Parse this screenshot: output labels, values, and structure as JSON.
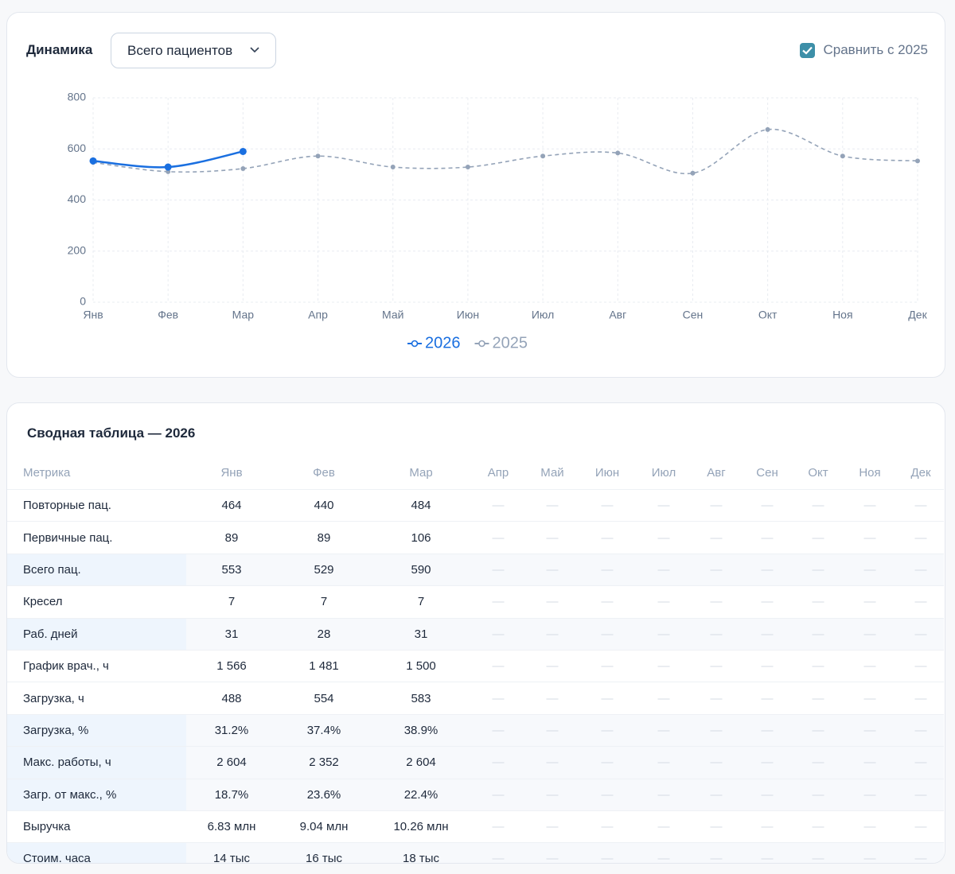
{
  "header": {
    "title": "Динамика",
    "dropdown": "Всего пациентов",
    "compare": "Сравнить с 2025"
  },
  "chart_data": {
    "type": "line",
    "categories": [
      "Янв",
      "Фев",
      "Мар",
      "Апр",
      "Май",
      "Июн",
      "Июл",
      "Авг",
      "Сен",
      "Окт",
      "Ноя",
      "Дек"
    ],
    "series": [
      {
        "name": "2026",
        "color": "#1a6fe0",
        "dashed": false,
        "values": [
          553,
          529,
          590,
          null,
          null,
          null,
          null,
          null,
          null,
          null,
          null,
          null
        ]
      },
      {
        "name": "2025",
        "color": "#94a3b8",
        "dashed": true,
        "values": [
          547,
          511,
          523,
          572,
          529,
          529,
          572,
          584,
          505,
          676,
          572,
          553
        ]
      }
    ],
    "ylim": [
      0,
      800
    ],
    "yticks": [
      0,
      200,
      400,
      600,
      800
    ],
    "grid": true
  },
  "table": {
    "title": "Сводная таблица — 2026",
    "columns": [
      "Метрика",
      "Янв",
      "Фев",
      "Мар",
      "Апр",
      "Май",
      "Июн",
      "Июл",
      "Авг",
      "Сен",
      "Окт",
      "Ноя",
      "Дек"
    ],
    "rows": [
      [
        "Повторные пац.",
        "464",
        "440",
        "484",
        "—",
        "—",
        "—",
        "—",
        "—",
        "—",
        "—",
        "—",
        "—"
      ],
      [
        "Первичные пац.",
        "89",
        "89",
        "106",
        "—",
        "—",
        "—",
        "—",
        "—",
        "—",
        "—",
        "—",
        "—"
      ],
      [
        "Всего пац.",
        "553",
        "529",
        "590",
        "—",
        "—",
        "—",
        "—",
        "—",
        "—",
        "—",
        "—",
        "—"
      ],
      [
        "Кресел",
        "7",
        "7",
        "7",
        "—",
        "—",
        "—",
        "—",
        "—",
        "—",
        "—",
        "—",
        "—"
      ],
      [
        "Раб. дней",
        "31",
        "28",
        "31",
        "—",
        "—",
        "—",
        "—",
        "—",
        "—",
        "—",
        "—",
        "—"
      ],
      [
        "График врач., ч",
        "1 566",
        "1 481",
        "1 500",
        "—",
        "—",
        "—",
        "—",
        "—",
        "—",
        "—",
        "—",
        "—"
      ],
      [
        "Загрузка, ч",
        "488",
        "554",
        "583",
        "—",
        "—",
        "—",
        "—",
        "—",
        "—",
        "—",
        "—",
        "—"
      ],
      [
        "Загрузка, %",
        "31.2%",
        "37.4%",
        "38.9%",
        "—",
        "—",
        "—",
        "—",
        "—",
        "—",
        "—",
        "—",
        "—"
      ],
      [
        "Макс. работы, ч",
        "2 604",
        "2 352",
        "2 604",
        "—",
        "—",
        "—",
        "—",
        "—",
        "—",
        "—",
        "—",
        "—"
      ],
      [
        "Загр. от макс., %",
        "18.7%",
        "23.6%",
        "22.4%",
        "—",
        "—",
        "—",
        "—",
        "—",
        "—",
        "—",
        "—",
        "—"
      ],
      [
        "Выручка",
        "6.83 млн",
        "9.04 млн",
        "10.26 млн",
        "—",
        "—",
        "—",
        "—",
        "—",
        "—",
        "—",
        "—",
        "—"
      ],
      [
        "Стоим. часа",
        "14 тыс",
        "16 тыс",
        "18 тыс",
        "—",
        "—",
        "—",
        "—",
        "—",
        "—",
        "—",
        "—",
        "—"
      ]
    ]
  }
}
